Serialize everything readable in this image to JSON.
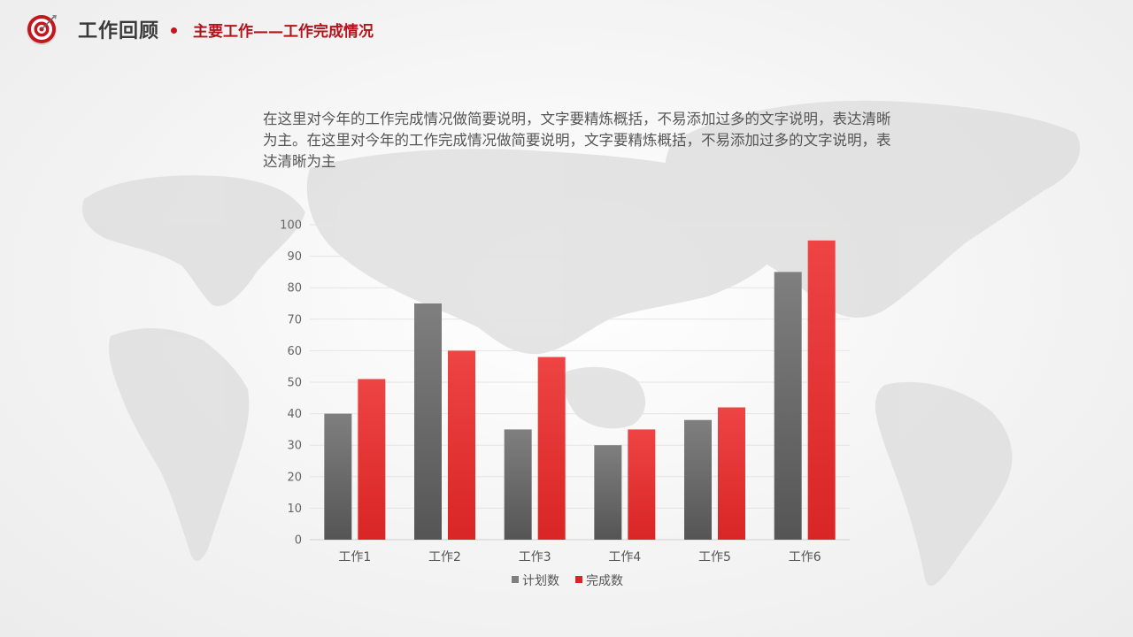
{
  "header": {
    "title": "工作回顾",
    "subtitle": "主要工作——工作完成情况"
  },
  "description": "在这里对今年的工作完成情况做简要说明，文字要精炼概括，不易添加过多的文字说明，表达清晰为主。在这里对今年的工作完成情况做简要说明，文字要精炼概括，不易添加过多的文字说明，表达清晰为主",
  "colors": {
    "accent": "#c4161c",
    "plan_top": "#7f7f7f",
    "plan_bottom": "#555555",
    "done_top": "#ee4444",
    "done_bottom": "#d92525"
  },
  "chart_data": {
    "type": "bar",
    "categories": [
      "工作1",
      "工作2",
      "工作3",
      "工作4",
      "工作5",
      "工作6"
    ],
    "series": [
      {
        "name": "计划数",
        "values": [
          40,
          75,
          35,
          30,
          38,
          85
        ]
      },
      {
        "name": "完成数",
        "values": [
          51,
          60,
          58,
          35,
          42,
          95
        ]
      }
    ],
    "ylim": [
      0,
      100
    ],
    "yticks": [
      0,
      10,
      20,
      30,
      40,
      50,
      60,
      70,
      80,
      90,
      100
    ],
    "grid": true,
    "legend": "bottom"
  }
}
